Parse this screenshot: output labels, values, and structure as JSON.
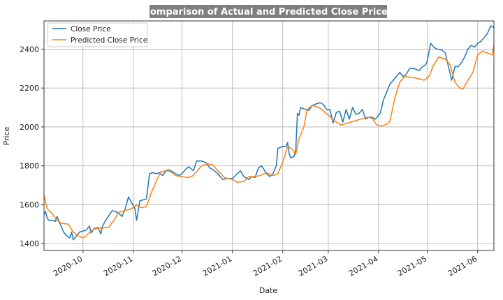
{
  "chart_data": {
    "type": "line",
    "title": "Comparison of Actual and Predicted Close Prices",
    "xlabel": "Date",
    "ylabel": "Price",
    "xlim": [
      "2020-09-07",
      "2021-06-11"
    ],
    "ylim": [
      1365,
      2545
    ],
    "grid": true,
    "legend_position": "top-left",
    "x_ticks": [
      "2020-10",
      "2020-11",
      "2020-12",
      "2021-01",
      "2021-02",
      "2021-03",
      "2021-04",
      "2021-05",
      "2021-06"
    ],
    "y_ticks": [
      1400,
      1600,
      1800,
      2000,
      2200,
      2400
    ],
    "series": [
      {
        "name": "Close Price",
        "color": "#1f77b4",
        "points": [
          [
            "2020-09-07",
            1550
          ],
          [
            "2020-09-08",
            1565
          ],
          [
            "2020-09-09",
            1530
          ],
          [
            "2020-09-10",
            1520
          ],
          [
            "2020-09-12",
            1520
          ],
          [
            "2020-09-14",
            1515
          ],
          [
            "2020-09-15",
            1540
          ],
          [
            "2020-09-17",
            1500
          ],
          [
            "2020-09-19",
            1460
          ],
          [
            "2020-09-21",
            1440
          ],
          [
            "2020-09-23",
            1430
          ],
          [
            "2020-09-24",
            1460
          ],
          [
            "2020-09-25",
            1420
          ],
          [
            "2020-09-27",
            1440
          ],
          [
            "2020-09-29",
            1460
          ],
          [
            "2020-10-01",
            1465
          ],
          [
            "2020-10-03",
            1470
          ],
          [
            "2020-10-05",
            1490
          ],
          [
            "2020-10-06",
            1455
          ],
          [
            "2020-10-08",
            1480
          ],
          [
            "2020-10-09",
            1475
          ],
          [
            "2020-10-10",
            1485
          ],
          [
            "2020-10-12",
            1450
          ],
          [
            "2020-10-13",
            1490
          ],
          [
            "2020-10-15",
            1520
          ],
          [
            "2020-10-17",
            1545
          ],
          [
            "2020-10-19",
            1570
          ],
          [
            "2020-10-21",
            1565
          ],
          [
            "2020-10-23",
            1555
          ],
          [
            "2020-10-25",
            1540
          ],
          [
            "2020-10-27",
            1580
          ],
          [
            "2020-10-29",
            1640
          ],
          [
            "2020-10-31",
            1610
          ],
          [
            "2020-11-02",
            1580
          ],
          [
            "2020-11-03",
            1520
          ],
          [
            "2020-11-05",
            1620
          ],
          [
            "2020-11-07",
            1625
          ],
          [
            "2020-11-09",
            1630
          ],
          [
            "2020-11-11",
            1760
          ],
          [
            "2020-11-13",
            1765
          ],
          [
            "2020-11-15",
            1760
          ],
          [
            "2020-11-17",
            1765
          ],
          [
            "2020-11-19",
            1750
          ],
          [
            "2020-11-21",
            1775
          ],
          [
            "2020-11-23",
            1780
          ],
          [
            "2020-11-25",
            1770
          ],
          [
            "2020-11-27",
            1760
          ],
          [
            "2020-11-29",
            1750
          ],
          [
            "2020-12-01",
            1760
          ],
          [
            "2020-12-03",
            1780
          ],
          [
            "2020-12-05",
            1795
          ],
          [
            "2020-12-08",
            1775
          ],
          [
            "2020-12-10",
            1825
          ],
          [
            "2020-12-13",
            1825
          ],
          [
            "2020-12-16",
            1815
          ],
          [
            "2020-12-18",
            1790
          ],
          [
            "2020-12-20",
            1780
          ],
          [
            "2020-12-23",
            1760
          ],
          [
            "2020-12-26",
            1730
          ],
          [
            "2020-12-29",
            1735
          ],
          [
            "2021-01-01",
            1735
          ],
          [
            "2021-01-04",
            1760
          ],
          [
            "2021-01-06",
            1775
          ],
          [
            "2021-01-08",
            1745
          ],
          [
            "2021-01-11",
            1730
          ],
          [
            "2021-01-13",
            1745
          ],
          [
            "2021-01-15",
            1740
          ],
          [
            "2021-01-17",
            1790
          ],
          [
            "2021-01-19",
            1800
          ],
          [
            "2021-01-22",
            1760
          ],
          [
            "2021-01-24",
            1745
          ],
          [
            "2021-01-26",
            1760
          ],
          [
            "2021-01-28",
            1800
          ],
          [
            "2021-01-29",
            1890
          ],
          [
            "2021-02-01",
            1900
          ],
          [
            "2021-02-03",
            1900
          ],
          [
            "2021-02-04",
            1920
          ],
          [
            "2021-02-05",
            1860
          ],
          [
            "2021-02-06",
            1840
          ],
          [
            "2021-02-08",
            1850
          ],
          [
            "2021-02-09",
            1880
          ],
          [
            "2021-02-10",
            2070
          ],
          [
            "2021-02-11",
            2060
          ],
          [
            "2021-02-12",
            2100
          ],
          [
            "2021-02-15",
            2090
          ],
          [
            "2021-02-17",
            2085
          ],
          [
            "2021-02-19",
            2110
          ],
          [
            "2021-02-22",
            2120
          ],
          [
            "2021-02-24",
            2125
          ],
          [
            "2021-02-26",
            2115
          ],
          [
            "2021-02-28",
            2090
          ],
          [
            "2021-03-02",
            2090
          ],
          [
            "2021-03-04",
            2020
          ],
          [
            "2021-03-06",
            2075
          ],
          [
            "2021-03-08",
            2080
          ],
          [
            "2021-03-10",
            2025
          ],
          [
            "2021-03-12",
            2090
          ],
          [
            "2021-03-14",
            2040
          ],
          [
            "2021-03-16",
            2100
          ],
          [
            "2021-03-18",
            2065
          ],
          [
            "2021-03-20",
            2070
          ],
          [
            "2021-03-22",
            2090
          ],
          [
            "2021-03-24",
            2040
          ],
          [
            "2021-03-26",
            2050
          ],
          [
            "2021-03-28",
            2050
          ],
          [
            "2021-03-30",
            2040
          ],
          [
            "2021-04-01",
            2060
          ],
          [
            "2021-04-02",
            2070
          ],
          [
            "2021-04-04",
            2140
          ],
          [
            "2021-04-06",
            2180
          ],
          [
            "2021-04-08",
            2220
          ],
          [
            "2021-04-10",
            2240
          ],
          [
            "2021-04-12",
            2260
          ],
          [
            "2021-04-14",
            2280
          ],
          [
            "2021-04-16",
            2260
          ],
          [
            "2021-04-18",
            2270
          ],
          [
            "2021-04-20",
            2300
          ],
          [
            "2021-04-23",
            2300
          ],
          [
            "2021-04-26",
            2290
          ],
          [
            "2021-04-28",
            2310
          ],
          [
            "2021-04-30",
            2320
          ],
          [
            "2021-05-01",
            2340
          ],
          [
            "2021-05-03",
            2430
          ],
          [
            "2021-05-05",
            2410
          ],
          [
            "2021-05-07",
            2400
          ],
          [
            "2021-05-10",
            2395
          ],
          [
            "2021-05-12",
            2380
          ],
          [
            "2021-05-14",
            2310
          ],
          [
            "2021-05-16",
            2240
          ],
          [
            "2021-05-18",
            2310
          ],
          [
            "2021-05-20",
            2310
          ],
          [
            "2021-05-22",
            2330
          ],
          [
            "2021-05-24",
            2360
          ],
          [
            "2021-05-26",
            2400
          ],
          [
            "2021-05-28",
            2420
          ],
          [
            "2021-05-30",
            2410
          ],
          [
            "2021-06-01",
            2430
          ],
          [
            "2021-06-03",
            2440
          ],
          [
            "2021-06-05",
            2460
          ],
          [
            "2021-06-07",
            2480
          ],
          [
            "2021-06-09",
            2520
          ],
          [
            "2021-06-11",
            2510
          ]
        ]
      },
      {
        "name": "Predicted Close Price",
        "color": "#ff7f0e",
        "points": [
          [
            "2020-09-07",
            1650
          ],
          [
            "2020-09-09",
            1580
          ],
          [
            "2020-09-12",
            1555
          ],
          [
            "2020-09-15",
            1520
          ],
          [
            "2020-09-18",
            1505
          ],
          [
            "2020-09-22",
            1500
          ],
          [
            "2020-09-25",
            1460
          ],
          [
            "2020-09-28",
            1440
          ],
          [
            "2020-10-01",
            1430
          ],
          [
            "2020-10-03",
            1440
          ],
          [
            "2020-10-06",
            1465
          ],
          [
            "2020-10-09",
            1480
          ],
          [
            "2020-10-13",
            1480
          ],
          [
            "2020-10-17",
            1485
          ],
          [
            "2020-10-20",
            1520
          ],
          [
            "2020-10-23",
            1560
          ],
          [
            "2020-10-27",
            1570
          ],
          [
            "2020-10-31",
            1580
          ],
          [
            "2020-11-03",
            1600
          ],
          [
            "2020-11-06",
            1585
          ],
          [
            "2020-11-09",
            1590
          ],
          [
            "2020-11-12",
            1660
          ],
          [
            "2020-11-15",
            1720
          ],
          [
            "2020-11-18",
            1770
          ],
          [
            "2020-11-21",
            1775
          ],
          [
            "2020-11-24",
            1770
          ],
          [
            "2020-11-27",
            1750
          ],
          [
            "2020-12-01",
            1745
          ],
          [
            "2020-12-04",
            1740
          ],
          [
            "2020-12-07",
            1745
          ],
          [
            "2020-12-10",
            1770
          ],
          [
            "2020-12-13",
            1800
          ],
          [
            "2020-12-17",
            1810
          ],
          [
            "2020-12-20",
            1805
          ],
          [
            "2020-12-23",
            1775
          ],
          [
            "2020-12-27",
            1740
          ],
          [
            "2021-01-01",
            1730
          ],
          [
            "2021-01-04",
            1715
          ],
          [
            "2021-01-08",
            1720
          ],
          [
            "2021-01-11",
            1745
          ],
          [
            "2021-01-15",
            1745
          ],
          [
            "2021-01-18",
            1750
          ],
          [
            "2021-01-22",
            1765
          ],
          [
            "2021-01-26",
            1750
          ],
          [
            "2021-01-29",
            1760
          ],
          [
            "2021-02-01",
            1820
          ],
          [
            "2021-02-04",
            1900
          ],
          [
            "2021-02-07",
            1885
          ],
          [
            "2021-02-09",
            1860
          ],
          [
            "2021-02-11",
            1940
          ],
          [
            "2021-02-14",
            2000
          ],
          [
            "2021-02-16",
            2090
          ],
          [
            "2021-02-19",
            2110
          ],
          [
            "2021-02-22",
            2105
          ],
          [
            "2021-02-25",
            2090
          ],
          [
            "2021-03-01",
            2060
          ],
          [
            "2021-03-05",
            2030
          ],
          [
            "2021-03-09",
            2010
          ],
          [
            "2021-03-13",
            2020
          ],
          [
            "2021-03-17",
            2030
          ],
          [
            "2021-03-21",
            2040
          ],
          [
            "2021-03-25",
            2050
          ],
          [
            "2021-03-28",
            2045
          ],
          [
            "2021-03-31",
            2010
          ],
          [
            "2021-04-03",
            2005
          ],
          [
            "2021-04-06",
            2015
          ],
          [
            "2021-04-08",
            2030
          ],
          [
            "2021-04-11",
            2150
          ],
          [
            "2021-04-14",
            2230
          ],
          [
            "2021-04-17",
            2260
          ],
          [
            "2021-04-21",
            2255
          ],
          [
            "2021-04-25",
            2250
          ],
          [
            "2021-04-29",
            2240
          ],
          [
            "2021-05-02",
            2260
          ],
          [
            "2021-05-05",
            2320
          ],
          [
            "2021-05-08",
            2360
          ],
          [
            "2021-05-12",
            2350
          ],
          [
            "2021-05-15",
            2320
          ],
          [
            "2021-05-18",
            2230
          ],
          [
            "2021-05-21",
            2200
          ],
          [
            "2021-05-23",
            2195
          ],
          [
            "2021-05-26",
            2240
          ],
          [
            "2021-05-29",
            2280
          ],
          [
            "2021-06-01",
            2370
          ],
          [
            "2021-06-04",
            2390
          ],
          [
            "2021-06-07",
            2380
          ],
          [
            "2021-06-10",
            2370
          ],
          [
            "2021-06-11",
            2420
          ]
        ]
      }
    ]
  }
}
